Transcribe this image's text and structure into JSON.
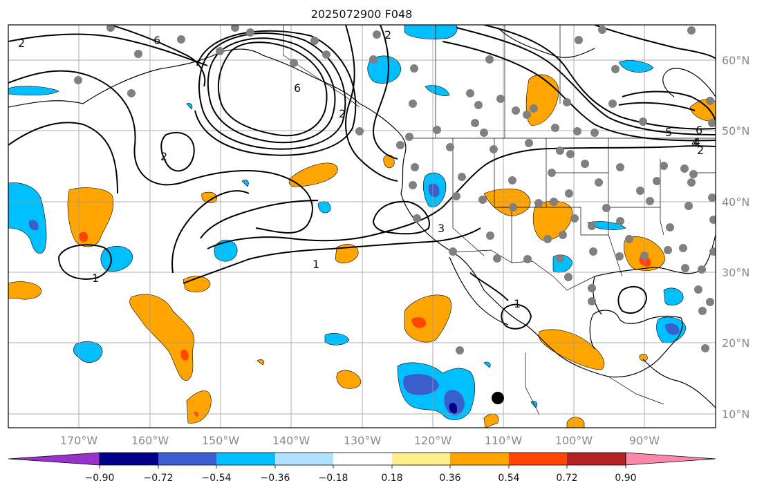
{
  "title": "2025072900 F048",
  "map": {
    "projection": "PlateCarree",
    "lon_range": [
      -180,
      -80
    ],
    "lat_range": [
      8,
      65
    ],
    "lon_ticks": [
      "170°W",
      "160°W",
      "150°W",
      "140°W",
      "130°W",
      "120°W",
      "110°W",
      "100°W",
      "90°W"
    ],
    "lat_ticks": [
      "60°N",
      "50°N",
      "40°N",
      "30°N",
      "20°N",
      "10°N"
    ],
    "gridlines": true
  },
  "colorbar": {
    "extend": "both",
    "colors": [
      "#9932cc",
      "#00008b",
      "#3a5fcd",
      "#00bfff",
      "#b0e2ff",
      "#ffffff",
      "#ffec8b",
      "#ffa500",
      "#ff4500",
      "#b22222",
      "#ff88aa"
    ],
    "tick_labels": [
      "−0.90",
      "−0.72",
      "−0.54",
      "−0.36",
      "−0.18",
      "0.18",
      "0.36",
      "0.54",
      "0.72",
      "0.90"
    ]
  },
  "contour_labels": [
    "2",
    "6",
    "6",
    "4",
    "2",
    "2",
    "5",
    "6",
    "4",
    "2",
    "3",
    "1",
    "1",
    "1",
    "2"
  ],
  "colors": {
    "positive_fill": "#ffa500",
    "strong_positive_fill": "#ff4500",
    "negative_fill": "#00bfff",
    "strong_negative_fill": "#3a5fcd",
    "station_dot": "#808080"
  }
}
